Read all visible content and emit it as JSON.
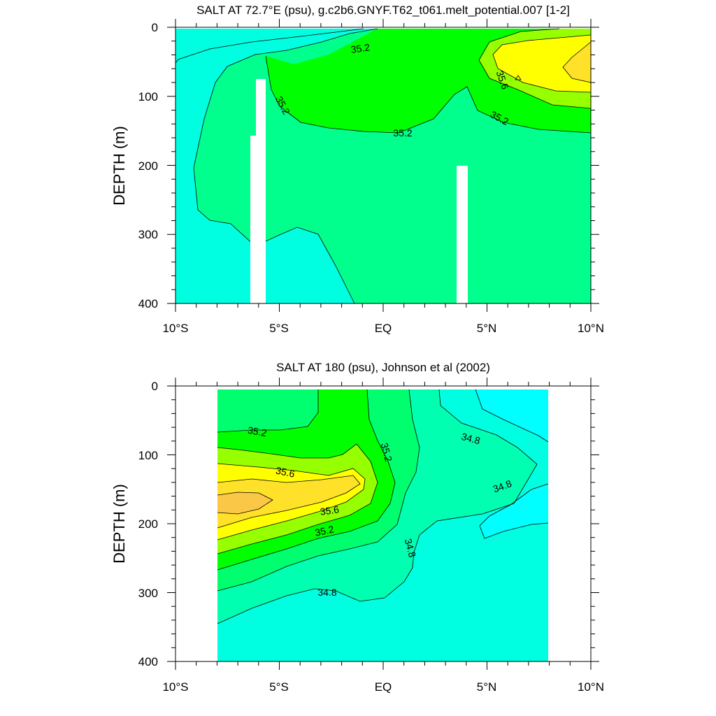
{
  "chart_data": [
    {
      "type": "contour",
      "title": "SALT AT  72.7°E (psu), g.c2b6.GNYF.T62_t061.melt_potential.007 [1-2]",
      "xlabel": "",
      "ylabel": "DEPTH (m)",
      "xlim": [
        -10,
        10
      ],
      "ylim": [
        400,
        0
      ],
      "x_ticks": [
        "10°S",
        "5°S",
        "EQ",
        "5°N",
        "10°N"
      ],
      "y_ticks": [
        "0",
        "100",
        "200",
        "300",
        "400"
      ],
      "contour_labels": [
        "35.2",
        "35.2",
        "35.2",
        "35.2",
        "35.6"
      ],
      "regions": [
        {
          "level": "< 35.0",
          "color": "#00ffe0"
        },
        {
          "level": "35.0–35.2",
          "color": "#00ff8c"
        },
        {
          "level": "35.2–35.4",
          "color": "#00ff00"
        },
        {
          "level": "35.4–35.6",
          "color": "#96ff00"
        },
        {
          "level": "35.6–35.8",
          "color": "#ffff00"
        },
        {
          "level": "> 35.8",
          "color": "#ffe12a"
        }
      ],
      "masked_columns": [
        {
          "x_from": -6.4,
          "x_to": -5.7,
          "depth_from": 75,
          "depth_to": 400
        },
        {
          "x_from": 3.6,
          "x_to": 4.1,
          "depth_from": 200,
          "depth_to": 400
        }
      ]
    },
    {
      "type": "contour",
      "title": "SALT AT 180 (psu), Johnson et al (2002)",
      "xlabel": "",
      "ylabel": "DEPTH (m)",
      "xlim": [
        -10,
        10
      ],
      "ylim": [
        400,
        0
      ],
      "x_ticks": [
        "10°S",
        "5°S",
        "EQ",
        "5°N",
        "10°N"
      ],
      "y_ticks": [
        "0",
        "100",
        "200",
        "300",
        "400"
      ],
      "data_extent_x": [
        -8,
        8
      ],
      "contour_labels": [
        "35.2",
        "35.2",
        "35.2",
        "35.6",
        "35.6",
        "34.8",
        "34.8",
        "34.8",
        "34.8"
      ],
      "regions": [
        {
          "level": "< 34.6",
          "color": "#00ffff"
        },
        {
          "level": "34.6–34.8",
          "color": "#00ffe0"
        },
        {
          "level": "34.8–35.0",
          "color": "#00ffb0"
        },
        {
          "level": "35.0–35.2",
          "color": "#00ff6e"
        },
        {
          "level": "35.2–35.4",
          "color": "#00ff00"
        },
        {
          "level": "35.4–35.6",
          "color": "#96ff00"
        },
        {
          "level": "35.6–35.8",
          "color": "#ffff00"
        },
        {
          "level": "35.8–36.0",
          "color": "#ffe12a"
        },
        {
          "level": "> 36.0",
          "color": "#fac846"
        }
      ]
    }
  ]
}
